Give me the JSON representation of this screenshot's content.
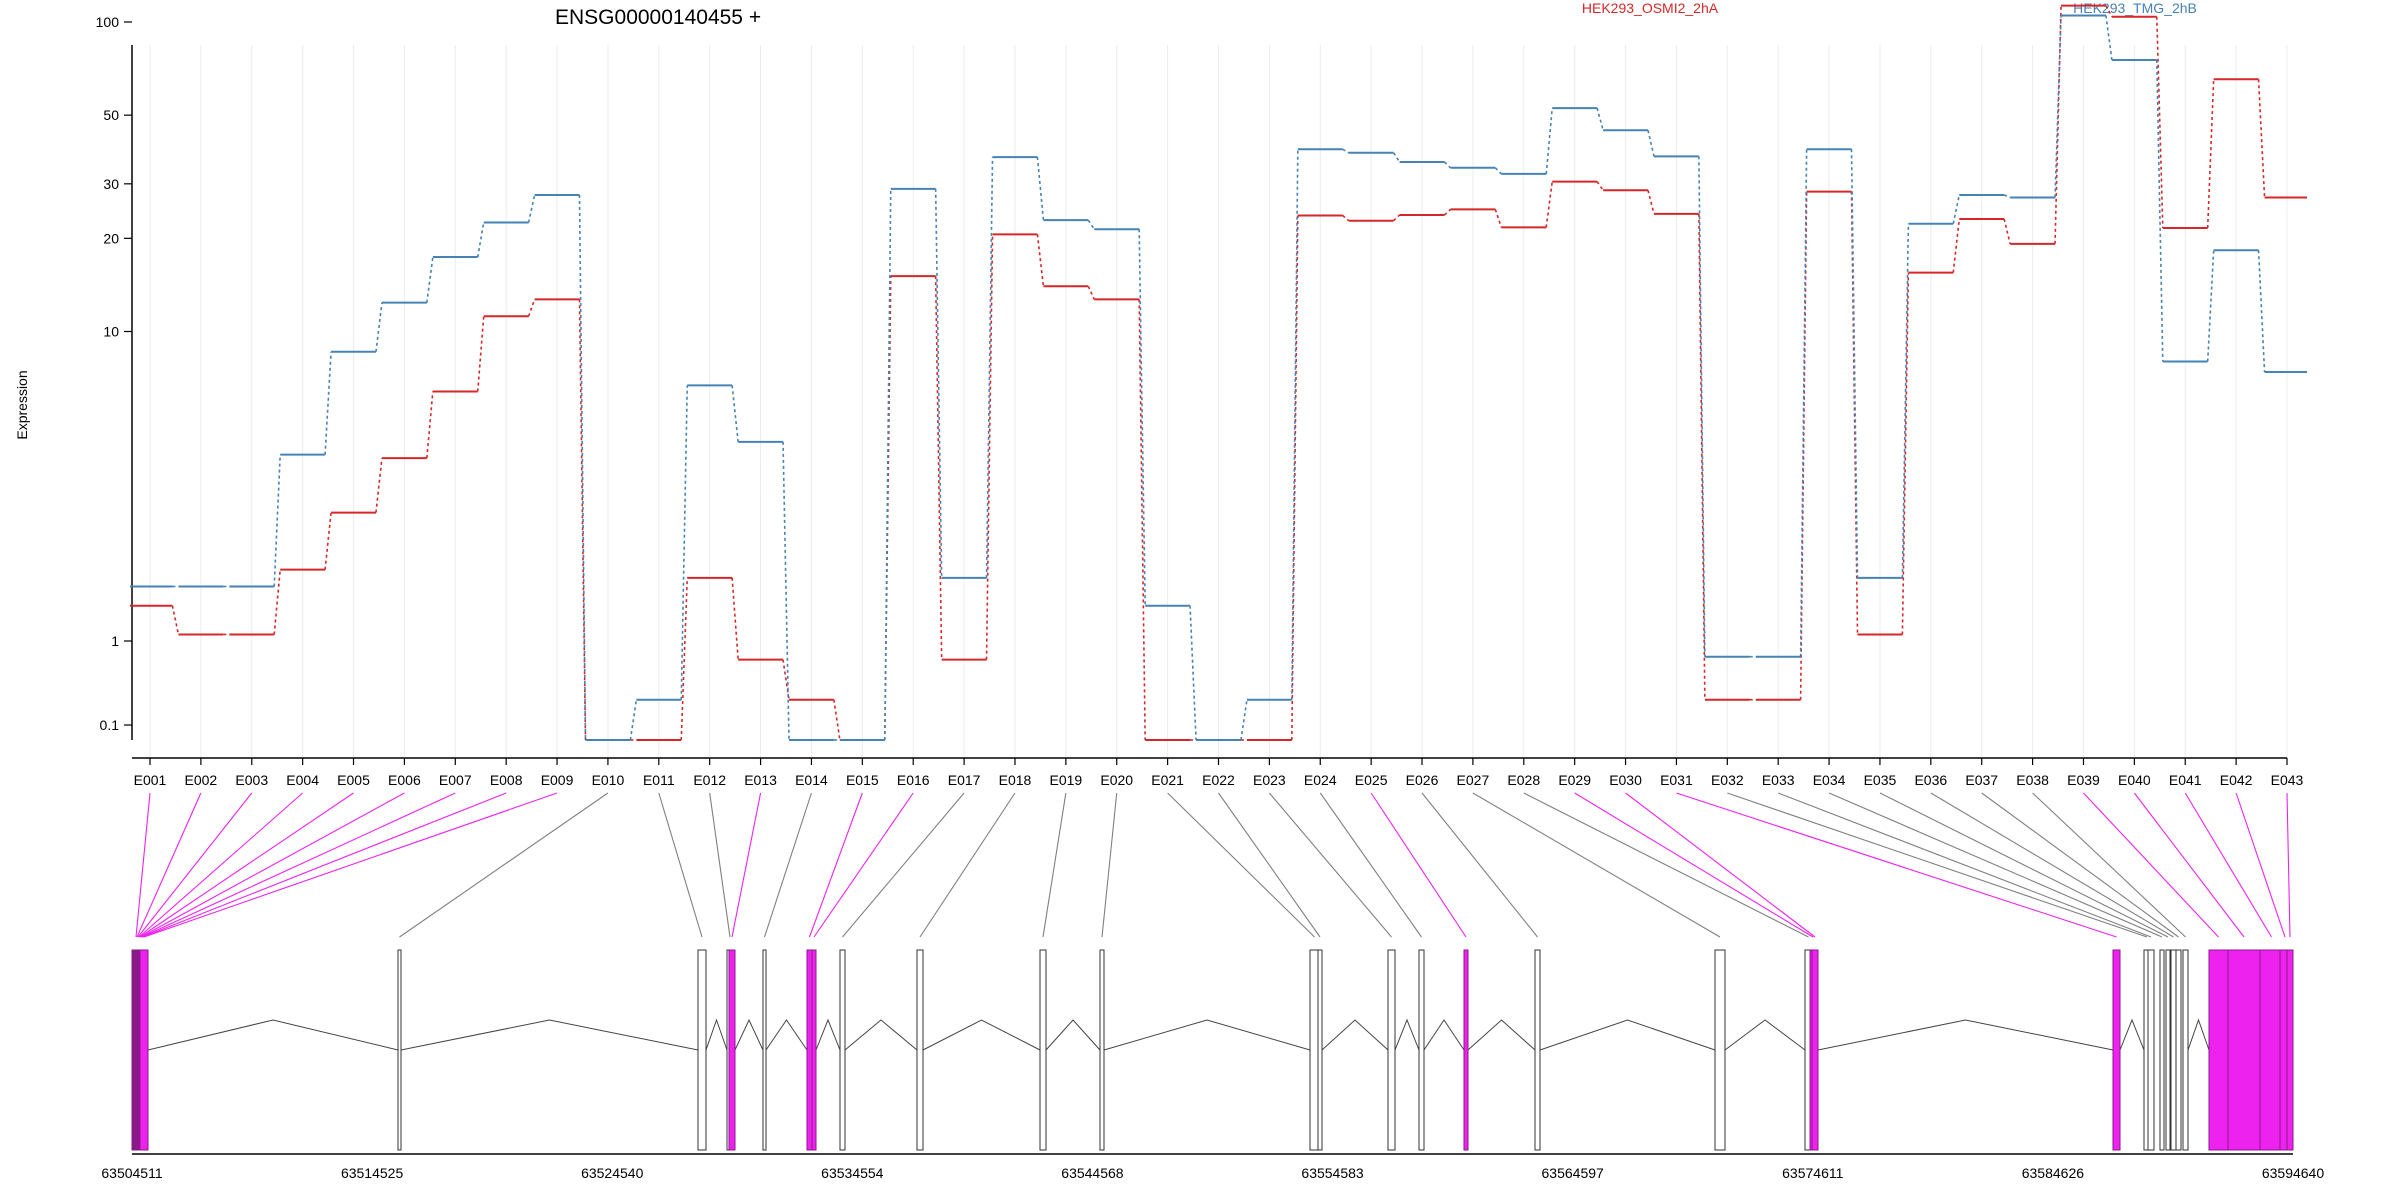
{
  "chart_data": {
    "type": "line",
    "title": "ENSG00000140455 +",
    "ylabel": "Expression",
    "y_scale": "log",
    "y_ticks": [
      0.1,
      1,
      10,
      20,
      30,
      50,
      100
    ],
    "y_tick_labels": [
      "0.1",
      "1",
      "10",
      "20",
      "30",
      "50",
      "100"
    ],
    "grid": "vertical",
    "categories": [
      "E001",
      "E002",
      "E003",
      "E004",
      "E005",
      "E006",
      "E007",
      "E008",
      "E009",
      "E010",
      "E011",
      "E012",
      "E013",
      "E014",
      "E015",
      "E016",
      "E017",
      "E018",
      "E019",
      "E020",
      "E021",
      "E022",
      "E023",
      "E024",
      "E025",
      "E026",
      "E027",
      "E028",
      "E029",
      "E030",
      "E031",
      "E032",
      "E033",
      "E034",
      "E035",
      "E036",
      "E037",
      "E038",
      "E039",
      "E040",
      "E041",
      "E042",
      "E043"
    ],
    "series": [
      {
        "name": "HEK293_OSMI2_2hA",
        "color": "#d62728",
        "values": [
          1.3,
          1.05,
          1.05,
          1.7,
          2.6,
          3.9,
          6.4,
          11.2,
          12.7,
          0.07,
          0.07,
          1.6,
          0.6,
          0.2,
          0.07,
          15.1,
          0.6,
          20.6,
          14.0,
          12.7,
          0.07,
          0.07,
          0.07,
          23.7,
          22.8,
          23.8,
          24.8,
          21.7,
          30.5,
          28.6,
          24.0,
          0.2,
          0.2,
          28.3,
          1.05,
          15.5,
          23.1,
          19.2,
          113,
          104,
          21.6,
          65.3,
          27.1
        ]
      },
      {
        "name": "HEK293_TMG_2hB",
        "color": "#4682b4",
        "values": [
          1.5,
          1.5,
          1.5,
          4.0,
          8.6,
          12.4,
          17.4,
          22.5,
          27.6,
          0.07,
          0.2,
          6.7,
          4.4,
          0.07,
          0.07,
          28.9,
          1.6,
          36.6,
          22.9,
          21.4,
          1.3,
          0.07,
          0.2,
          38.8,
          37.8,
          35.3,
          33.8,
          32.3,
          52.7,
          44.7,
          36.8,
          0.65,
          0.65,
          38.8,
          1.6,
          22.3,
          27.6,
          27.1,
          105,
          75.4,
          8.0,
          18.3,
          7.4
        ]
      }
    ],
    "genomic_axis": {
      "tick_labels": [
        "63504511",
        "63514525",
        "63524540",
        "63534554",
        "63544568",
        "63554583",
        "63564597",
        "63574611",
        "63584626",
        "63594640"
      ]
    },
    "highlighted_exons": [
      "E001",
      "E002",
      "E003",
      "E004",
      "E005",
      "E006",
      "E007",
      "E008",
      "E009",
      "E013",
      "E015",
      "E016",
      "E025",
      "E029",
      "E030",
      "E031",
      "E039",
      "E040",
      "E041",
      "E042",
      "E043"
    ],
    "exon_track_colors": {
      "normal": "#808080",
      "highlight": "#ee22ee",
      "fill": "#ffffff"
    }
  }
}
